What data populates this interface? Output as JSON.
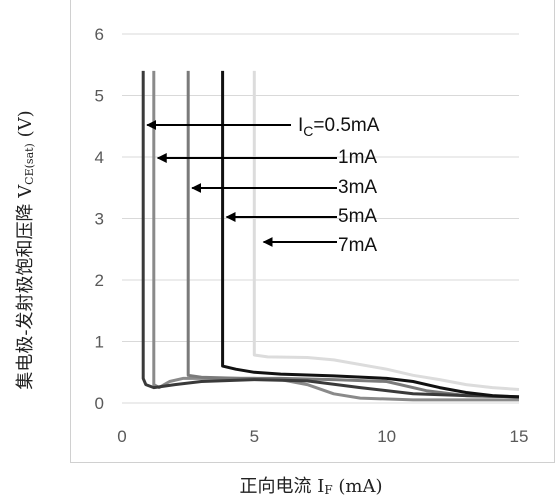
{
  "chart_data": {
    "type": "line",
    "xlabel": "正向电流 IF (mA)",
    "ylabel": "集电极-发射极饱和压降 VCE(sat) (V)",
    "xlim": [
      0,
      15
    ],
    "ylim": [
      0,
      6
    ],
    "x_ticks": [
      "0",
      "5",
      "10",
      "15"
    ],
    "y_ticks": [
      "0",
      "1",
      "2",
      "3",
      "4",
      "5",
      "6"
    ],
    "grid": "horizontal",
    "series": [
      {
        "name": "IC=0.5mA",
        "color": "#3a3a3a",
        "points": [
          [
            0.8,
            5.4
          ],
          [
            0.8,
            0.4
          ],
          [
            0.9,
            0.3
          ],
          [
            1.2,
            0.25
          ],
          [
            2,
            0.3
          ],
          [
            3,
            0.35
          ],
          [
            5,
            0.38
          ],
          [
            7,
            0.36
          ],
          [
            9,
            0.25
          ],
          [
            11,
            0.15
          ],
          [
            13,
            0.12
          ],
          [
            15,
            0.1
          ]
        ]
      },
      {
        "name": "1mA",
        "color": "#8a8a8a",
        "points": [
          [
            1.2,
            5.4
          ],
          [
            1.2,
            0.3
          ],
          [
            1.4,
            0.25
          ],
          [
            1.8,
            0.35
          ],
          [
            2.3,
            0.4
          ],
          [
            3,
            0.4
          ],
          [
            5,
            0.4
          ],
          [
            6,
            0.38
          ],
          [
            7,
            0.3
          ],
          [
            8,
            0.15
          ],
          [
            9,
            0.08
          ],
          [
            11,
            0.05
          ],
          [
            15,
            0.05
          ]
        ]
      },
      {
        "name": "3mA",
        "color": "#7a7a7a",
        "points": [
          [
            2.5,
            5.4
          ],
          [
            2.5,
            0.45
          ],
          [
            3,
            0.42
          ],
          [
            4.5,
            0.4
          ],
          [
            6,
            0.4
          ],
          [
            8,
            0.38
          ],
          [
            10,
            0.35
          ],
          [
            11.5,
            0.2
          ],
          [
            13,
            0.12
          ],
          [
            15,
            0.1
          ]
        ]
      },
      {
        "name": "5mA",
        "color": "#111111",
        "points": [
          [
            3.8,
            5.4
          ],
          [
            3.8,
            0.6
          ],
          [
            4.3,
            0.55
          ],
          [
            5,
            0.5
          ],
          [
            6,
            0.47
          ],
          [
            8,
            0.44
          ],
          [
            10,
            0.4
          ],
          [
            11,
            0.35
          ],
          [
            12,
            0.25
          ],
          [
            13,
            0.17
          ],
          [
            14,
            0.12
          ],
          [
            15,
            0.1
          ]
        ]
      },
      {
        "name": "7mA",
        "color": "#dcdcdc",
        "points": [
          [
            5,
            5.4
          ],
          [
            5,
            0.78
          ],
          [
            5.5,
            0.75
          ],
          [
            7,
            0.74
          ],
          [
            8,
            0.7
          ],
          [
            10,
            0.55
          ],
          [
            11,
            0.45
          ],
          [
            12,
            0.38
          ],
          [
            13,
            0.3
          ],
          [
            14,
            0.25
          ],
          [
            15,
            0.22
          ]
        ]
      }
    ],
    "annotations": [
      {
        "label": "IC=0.5mA",
        "points_to_x": 0.8
      },
      {
        "label": "1mA",
        "points_to_x": 1.2
      },
      {
        "label": "3mA",
        "points_to_x": 2.5
      },
      {
        "label": "5mA",
        "points_to_x": 3.8
      },
      {
        "label": "7mA",
        "points_to_x": 5.2
      }
    ]
  },
  "labels": {
    "xlabel_main": "正向电流 I",
    "xlabel_sub": "F",
    "xlabel_unit": " (mA)",
    "ylabel_main": "集电极-发射极饱和压降 V",
    "ylabel_sub": "CE(sat)",
    "ylabel_unit": " (V)",
    "callout_ic": "I",
    "callout_ic_sub": "C",
    "callout_ic_val": "=0.5mA",
    "callout_1": "1mA",
    "callout_3": "3mA",
    "callout_5": "5mA",
    "callout_7": "7mA"
  }
}
